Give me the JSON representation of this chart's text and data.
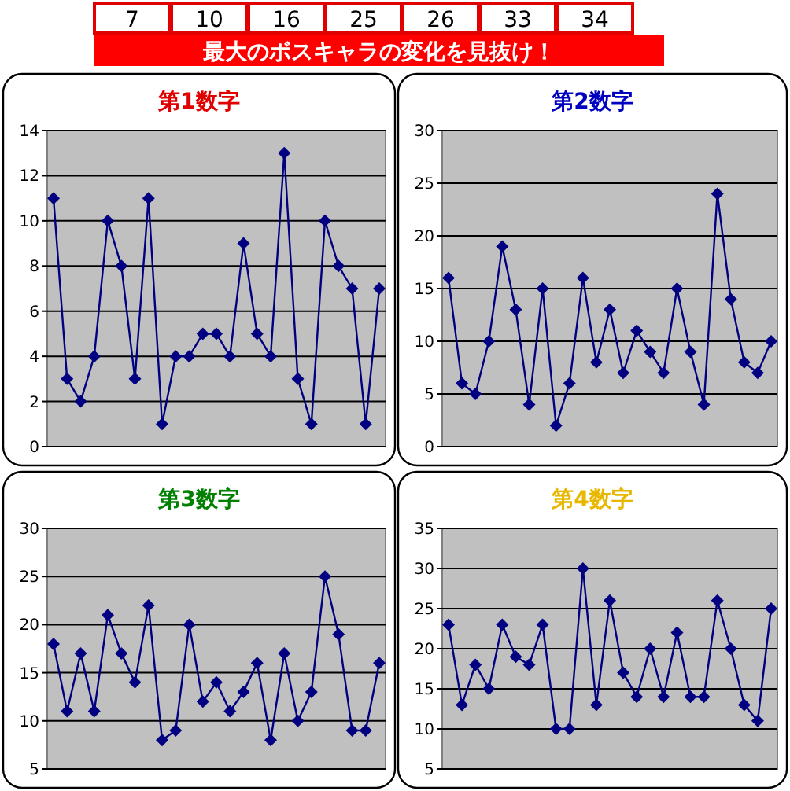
{
  "chart_data": [
    {
      "type": "other",
      "title": "最大のボスキャラの変化を見抜け！",
      "annotations": [
        "7",
        "10",
        "16",
        "25",
        "26",
        "33",
        "34"
      ]
    },
    {
      "type": "line",
      "title": "第1数字",
      "categories": [
        null,
        null,
        null,
        null,
        null,
        null,
        null,
        null,
        null,
        null,
        null,
        null,
        null,
        null,
        null,
        null,
        null,
        null,
        null,
        null,
        null,
        null,
        null,
        null,
        null
      ],
      "series": [
        {
          "color": "#000080",
          "values": [
            11,
            3,
            2,
            4,
            10,
            8,
            3,
            11,
            1,
            4,
            4,
            5,
            5,
            4,
            9,
            5,
            4,
            13,
            3,
            1,
            10,
            8,
            7,
            1,
            7
          ]
        }
      ],
      "ylim": [
        0,
        14
      ],
      "yticks": [
        0,
        2,
        4,
        6,
        8,
        10,
        12,
        14
      ],
      "grid": "y",
      "marker": "diamond",
      "line_style": "solid"
    },
    {
      "type": "line",
      "title": "第2数字",
      "categories": [
        null,
        null,
        null,
        null,
        null,
        null,
        null,
        null,
        null,
        null,
        null,
        null,
        null,
        null,
        null,
        null,
        null,
        null,
        null,
        null,
        null,
        null,
        null,
        null,
        null
      ],
      "series": [
        {
          "color": "#000080",
          "values": [
            16,
            6,
            5,
            10,
            19,
            13,
            4,
            15,
            2,
            6,
            16,
            8,
            13,
            7,
            11,
            9,
            7,
            15,
            9,
            4,
            24,
            14,
            8,
            7,
            10
          ]
        }
      ],
      "ylim": [
        0,
        30
      ],
      "yticks": [
        0,
        5,
        10,
        15,
        20,
        25,
        30
      ],
      "grid": "y",
      "marker": "diamond",
      "line_style": "solid"
    },
    {
      "type": "line",
      "title": "第3数字",
      "categories": [
        null,
        null,
        null,
        null,
        null,
        null,
        null,
        null,
        null,
        null,
        null,
        null,
        null,
        null,
        null,
        null,
        null,
        null,
        null,
        null,
        null,
        null,
        null,
        null,
        null
      ],
      "series": [
        {
          "color": "#000080",
          "values": [
            18,
            11,
            17,
            11,
            21,
            17,
            14,
            22,
            8,
            9,
            20,
            12,
            14,
            11,
            13,
            16,
            8,
            17,
            10,
            13,
            25,
            19,
            9,
            9,
            16
          ]
        }
      ],
      "ylim": [
        5,
        30
      ],
      "yticks": [
        5,
        10,
        15,
        20,
        25,
        30
      ],
      "grid": "y",
      "marker": "diamond",
      "line_style": "solid"
    },
    {
      "type": "line",
      "title": "第4数字",
      "categories": [
        null,
        null,
        null,
        null,
        null,
        null,
        null,
        null,
        null,
        null,
        null,
        null,
        null,
        null,
        null,
        null,
        null,
        null,
        null,
        null,
        null,
        null,
        null,
        null,
        null
      ],
      "series": [
        {
          "color": "#000080",
          "values": [
            23,
            13,
            18,
            15,
            23,
            19,
            18,
            23,
            10,
            10,
            30,
            13,
            26,
            17,
            14,
            20,
            14,
            22,
            14,
            14,
            26,
            20,
            13,
            11,
            25
          ]
        }
      ],
      "ylim": [
        5,
        35
      ],
      "yticks": [
        5,
        10,
        15,
        20,
        25,
        30,
        35
      ],
      "grid": "y",
      "marker": "diamond",
      "line_style": "solid"
    }
  ]
}
